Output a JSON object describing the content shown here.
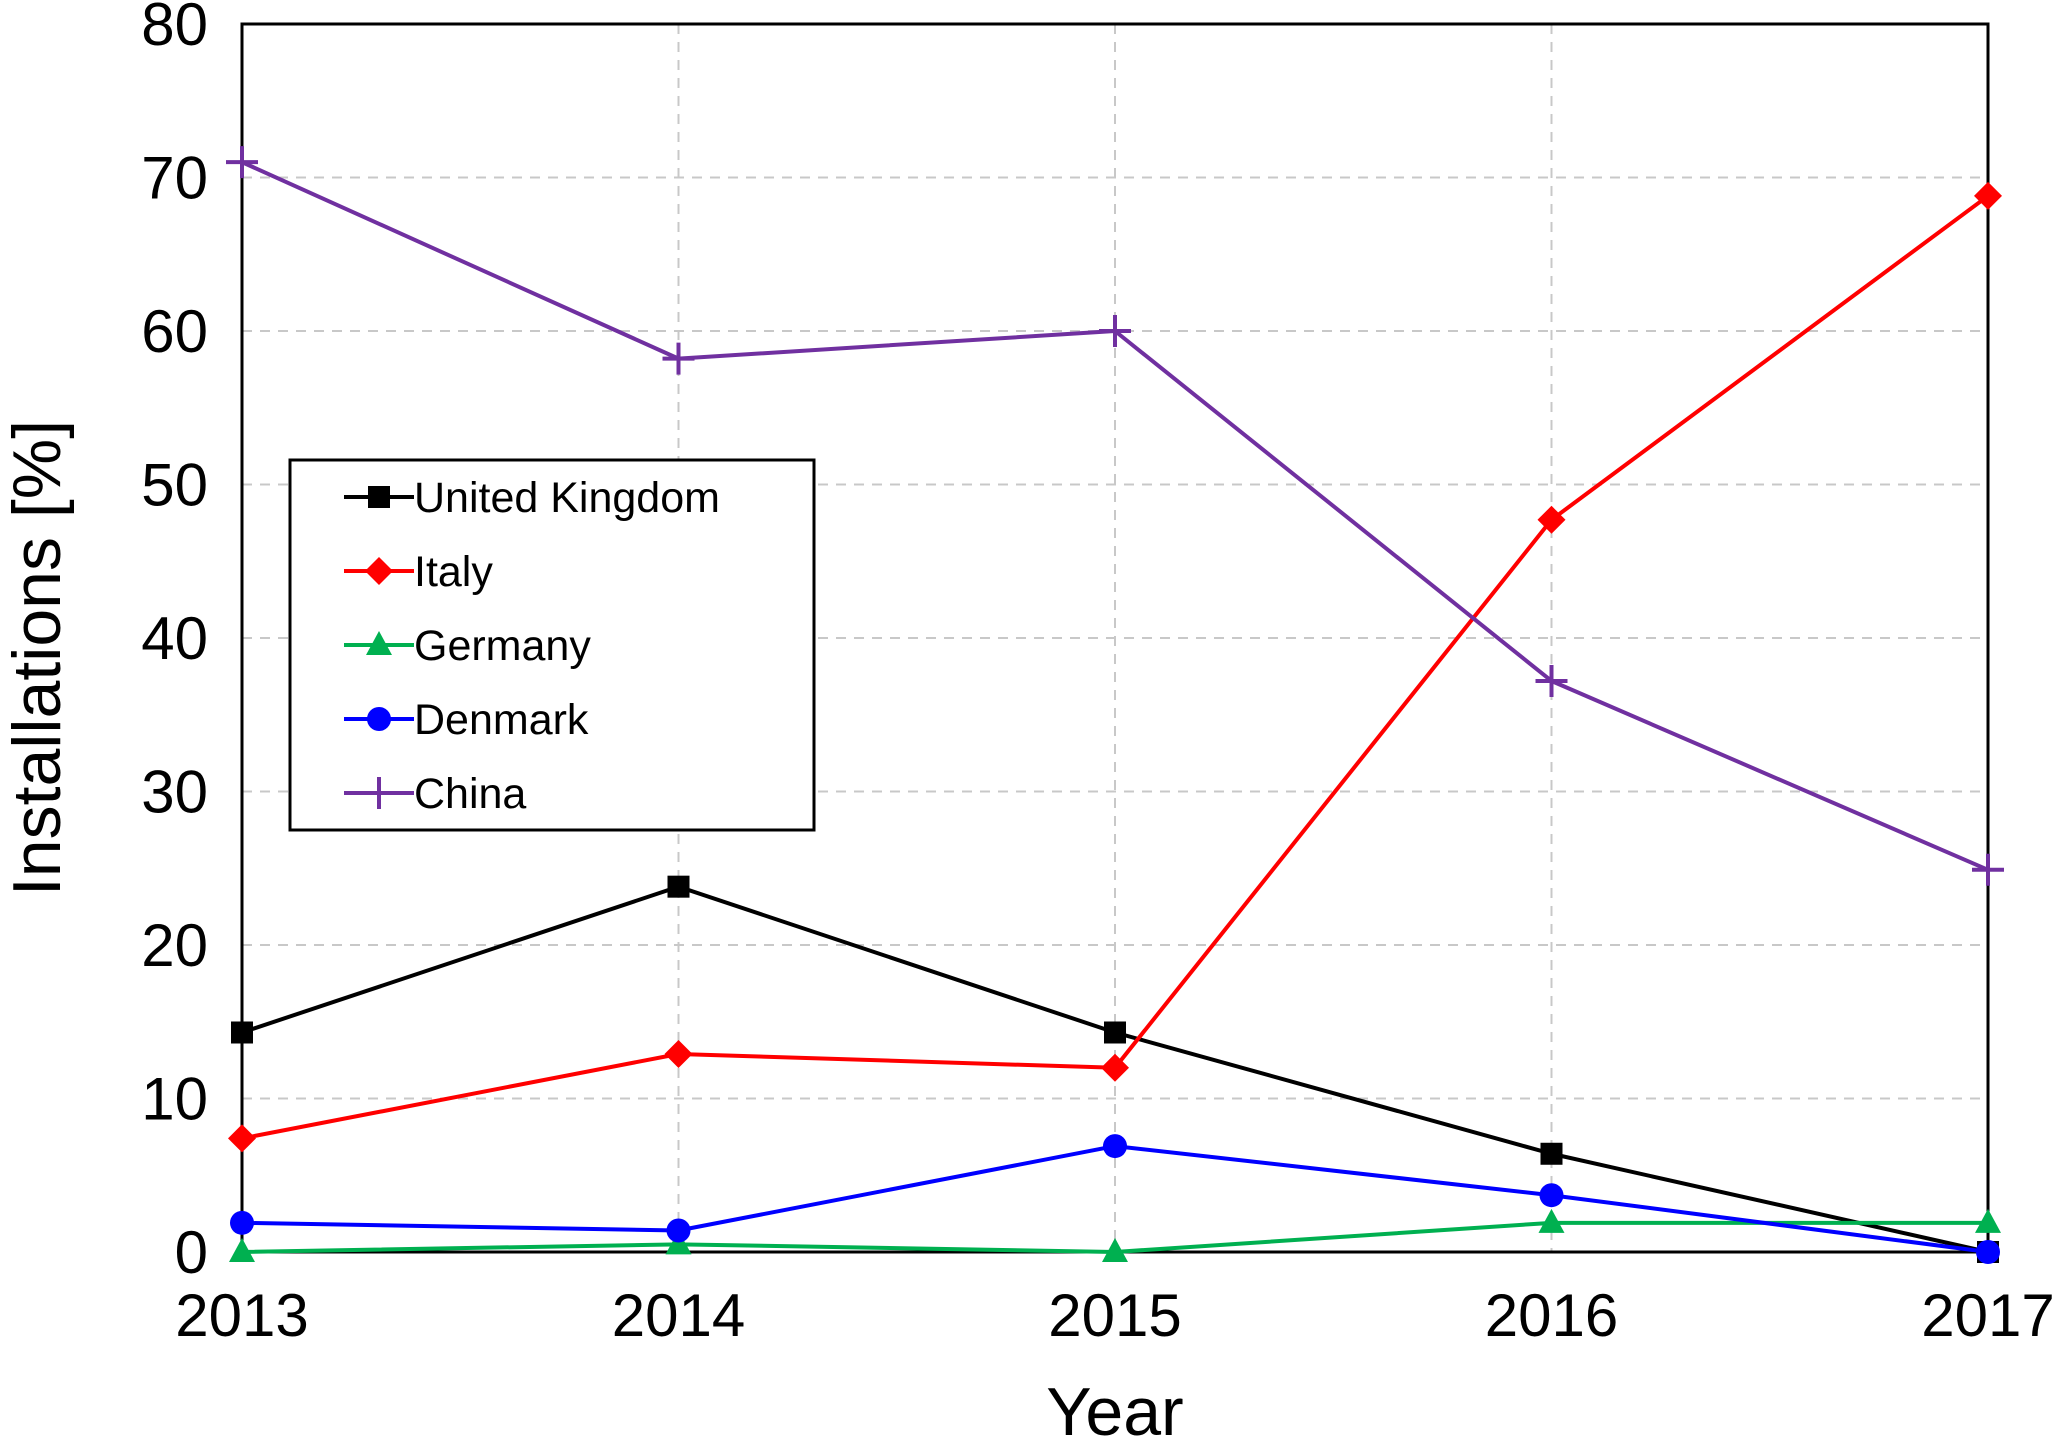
{
  "chart_data": {
    "type": "line",
    "title": "",
    "xlabel": "Year",
    "ylabel": "Installations [%]",
    "categories": [
      "2013",
      "2014",
      "2015",
      "2016",
      "2017"
    ],
    "ylim": [
      0,
      80
    ],
    "yticks": [
      0,
      10,
      20,
      30,
      40,
      50,
      60,
      70,
      80
    ],
    "grid": true,
    "legend_position": "center-left",
    "series": [
      {
        "name": "United Kingdom",
        "color": "#000000",
        "marker": "square",
        "values": [
          14.3,
          23.8,
          14.3,
          6.4,
          0
        ]
      },
      {
        "name": "Italy",
        "color": "#ff0000",
        "marker": "diamond",
        "values": [
          7.4,
          12.9,
          12.0,
          47.7,
          68.8
        ]
      },
      {
        "name": "Germany",
        "color": "#00b050",
        "marker": "triangle",
        "values": [
          0,
          0.5,
          0,
          1.9,
          1.9
        ]
      },
      {
        "name": "Denmark",
        "color": "#0000ff",
        "marker": "circle",
        "values": [
          1.9,
          1.4,
          6.9,
          3.7,
          0
        ]
      },
      {
        "name": "China",
        "color": "#7030a0",
        "marker": "plus",
        "values": [
          71.0,
          58.2,
          60.0,
          37.2,
          24.9
        ]
      }
    ]
  }
}
